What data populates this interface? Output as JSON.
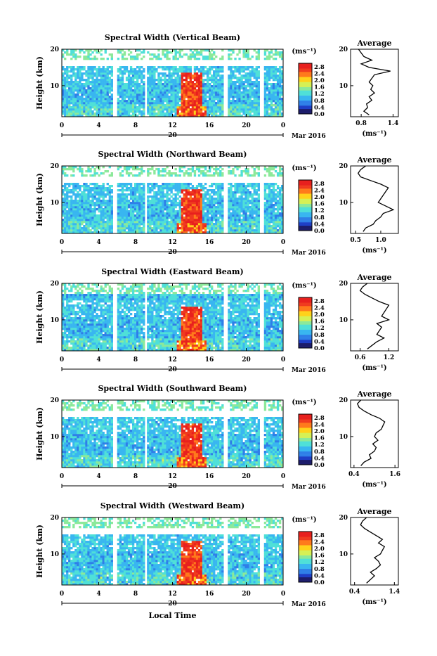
{
  "figure": {
    "xlabel": "Local Time",
    "day_label": "20",
    "month_label": "Mar 2016",
    "ylabel": "Height (km)",
    "x_ticks": [
      "0",
      "4",
      "8",
      "12",
      "16",
      "20",
      "0"
    ],
    "y_ticks": [
      "20",
      "10"
    ],
    "colorbar_unit": "(ms⁻¹)",
    "colorbar_ticks": [
      "2.8",
      "2.4",
      "2.0",
      "1.6",
      "1.2",
      "0.8",
      "0.4",
      "0.0"
    ],
    "colormap": [
      "#1c1c6b",
      "#1f3fc7",
      "#2f7fe8",
      "#39b6f0",
      "#4fe0d8",
      "#8ce99a",
      "#d6f055",
      "#ffd21a",
      "#ff7a1c",
      "#f03a1f",
      "#e8201e"
    ],
    "avg_title": "Average",
    "avg_unit": "(ms⁻¹)"
  },
  "chart_data": [
    {
      "type": "heatmap",
      "title": "Spectral Width (Vertical Beam)",
      "xlabel": "Local Time",
      "ylabel": "Height (km)",
      "x_range": [
        0,
        24
      ],
      "y_range": [
        1.5,
        20
      ],
      "value_range": [
        0.0,
        3.0
      ],
      "average_profile": {
        "title": "Average",
        "xlabel": "(ms⁻¹)",
        "x_ticks": [
          "0.8",
          "1.4"
        ],
        "x_range": [
          0.6,
          1.5
        ],
        "y_ticks": [
          "20",
          "10"
        ],
        "height": [
          2,
          3,
          4,
          5,
          6,
          7,
          8,
          9,
          10,
          11,
          12,
          13,
          14,
          15,
          16,
          17,
          18,
          19,
          20
        ],
        "value": [
          0.95,
          0.85,
          0.92,
          0.9,
          1.0,
          0.95,
          1.05,
          0.98,
          1.02,
          0.95,
          1.0,
          1.05,
          1.35,
          0.95,
          0.8,
          1.0,
          0.85,
          0.8,
          0.75
        ]
      }
    },
    {
      "type": "heatmap",
      "title": "Spectral Width (Northward Beam)",
      "xlabel": "Local Time",
      "ylabel": "Height (km)",
      "x_range": [
        0,
        24
      ],
      "y_range": [
        1.5,
        20
      ],
      "value_range": [
        0.0,
        3.0
      ],
      "average_profile": {
        "title": "Average",
        "xlabel": "(ms⁻¹)",
        "x_ticks": [
          "0.5",
          "1.0"
        ],
        "x_range": [
          0.4,
          1.35
        ],
        "y_ticks": [
          "20",
          "10"
        ],
        "height": [
          2,
          3,
          4,
          5,
          6,
          7,
          8,
          9,
          10,
          11,
          12,
          13,
          14,
          15,
          16,
          17,
          18,
          19,
          20
        ],
        "value": [
          0.65,
          0.7,
          0.85,
          0.9,
          1.0,
          1.05,
          1.25,
          1.1,
          0.95,
          1.0,
          1.05,
          1.1,
          1.15,
          1.0,
          0.8,
          0.6,
          0.55,
          0.6,
          0.7
        ]
      }
    },
    {
      "type": "heatmap",
      "title": "Spectral Width (Eastward Beam)",
      "xlabel": "Local Time",
      "ylabel": "Height (km)",
      "x_range": [
        0,
        24
      ],
      "y_range": [
        1.5,
        20
      ],
      "value_range": [
        0.0,
        3.0
      ],
      "average_profile": {
        "title": "Average",
        "xlabel": "(ms⁻¹)",
        "x_ticks": [
          "0.6",
          "1.2"
        ],
        "x_range": [
          0.4,
          1.4
        ],
        "y_ticks": [
          "20",
          "10"
        ],
        "height": [
          2,
          3,
          4,
          5,
          6,
          7,
          8,
          9,
          10,
          11,
          12,
          13,
          14,
          15,
          16,
          17,
          18,
          19,
          20
        ],
        "value": [
          0.75,
          0.85,
          0.95,
          1.1,
          0.95,
          1.0,
          1.05,
          0.95,
          1.2,
          1.05,
          1.1,
          1.15,
          1.2,
          1.0,
          0.85,
          0.7,
          0.6,
          0.65,
          0.75
        ]
      }
    },
    {
      "type": "heatmap",
      "title": "Spectral Width (Southward Beam)",
      "xlabel": "Local Time",
      "ylabel": "Height (km)",
      "x_range": [
        0,
        24
      ],
      "y_range": [
        1.5,
        20
      ],
      "value_range": [
        0.0,
        3.0
      ],
      "average_profile": {
        "title": "Average",
        "xlabel": "(ms⁻¹)",
        "x_ticks": [
          "0.4",
          "1.6"
        ],
        "x_range": [
          0.3,
          1.7
        ],
        "y_ticks": [
          "20",
          "10"
        ],
        "height": [
          2,
          3,
          4,
          5,
          6,
          7,
          8,
          9,
          10,
          11,
          12,
          13,
          14,
          15,
          16,
          17,
          18,
          19,
          20
        ],
        "value": [
          0.6,
          0.7,
          0.9,
          0.85,
          1.0,
          1.05,
          0.95,
          1.1,
          1.0,
          1.05,
          1.2,
          1.25,
          1.3,
          1.15,
          0.9,
          0.7,
          0.55,
          0.5,
          0.6
        ]
      }
    },
    {
      "type": "heatmap",
      "title": "Spectral Width (Westward Beam)",
      "xlabel": "Local Time",
      "ylabel": "Height (km)",
      "x_range": [
        0,
        24
      ],
      "y_range": [
        1.5,
        20
      ],
      "value_range": [
        0.0,
        3.0
      ],
      "average_profile": {
        "title": "Average",
        "xlabel": "(ms⁻¹)",
        "x_ticks": [
          "0.4",
          "1.4"
        ],
        "x_range": [
          0.3,
          1.5
        ],
        "y_ticks": [
          "20",
          "10"
        ],
        "height": [
          2,
          3,
          4,
          5,
          6,
          7,
          8,
          9,
          10,
          11,
          12,
          13,
          14,
          15,
          16,
          17,
          18,
          19,
          20
        ],
        "value": [
          0.7,
          0.8,
          0.9,
          0.8,
          0.95,
          1.05,
          1.0,
          0.9,
          1.05,
          1.1,
          1.15,
          1.0,
          1.1,
          0.95,
          0.8,
          0.65,
          0.55,
          0.6,
          0.7
        ]
      }
    }
  ]
}
